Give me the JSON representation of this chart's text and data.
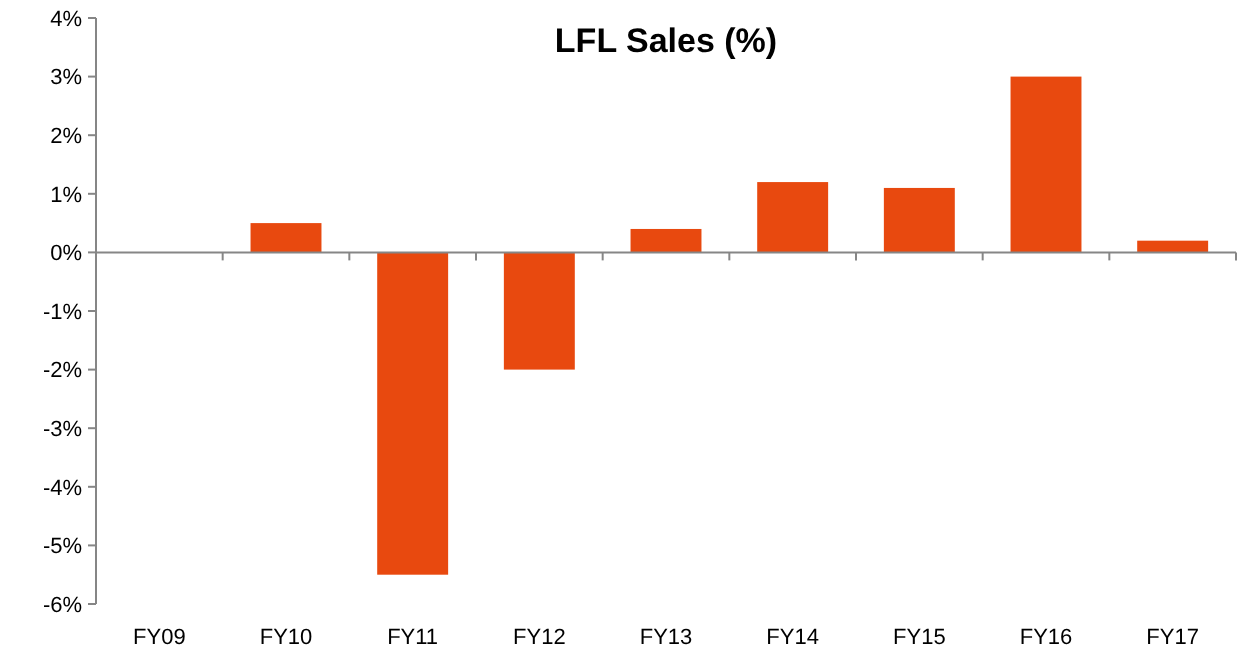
{
  "chart_data": {
    "type": "bar",
    "title": "LFL Sales (%)",
    "categories": [
      "FY09",
      "FY10",
      "FY11",
      "FY12",
      "FY13",
      "FY14",
      "FY15",
      "FY16",
      "FY17"
    ],
    "values": [
      0,
      0.5,
      -5.5,
      -2,
      0.4,
      1.2,
      1.1,
      3,
      0.2
    ],
    "color": "#e8490f",
    "ylim": [
      -6,
      4
    ],
    "yticks": [
      {
        "value": -6,
        "label": "-6%"
      },
      {
        "value": -5,
        "label": "-5%"
      },
      {
        "value": -4,
        "label": "-4%"
      },
      {
        "value": -3,
        "label": "-3%"
      },
      {
        "value": -2,
        "label": "-2%"
      },
      {
        "value": -1,
        "label": "-1%"
      },
      {
        "value": 0,
        "label": "0%"
      },
      {
        "value": 1,
        "label": "1%"
      },
      {
        "value": 2,
        "label": "2%"
      },
      {
        "value": 3,
        "label": "3%"
      },
      {
        "value": 4,
        "label": "4%"
      }
    ]
  }
}
